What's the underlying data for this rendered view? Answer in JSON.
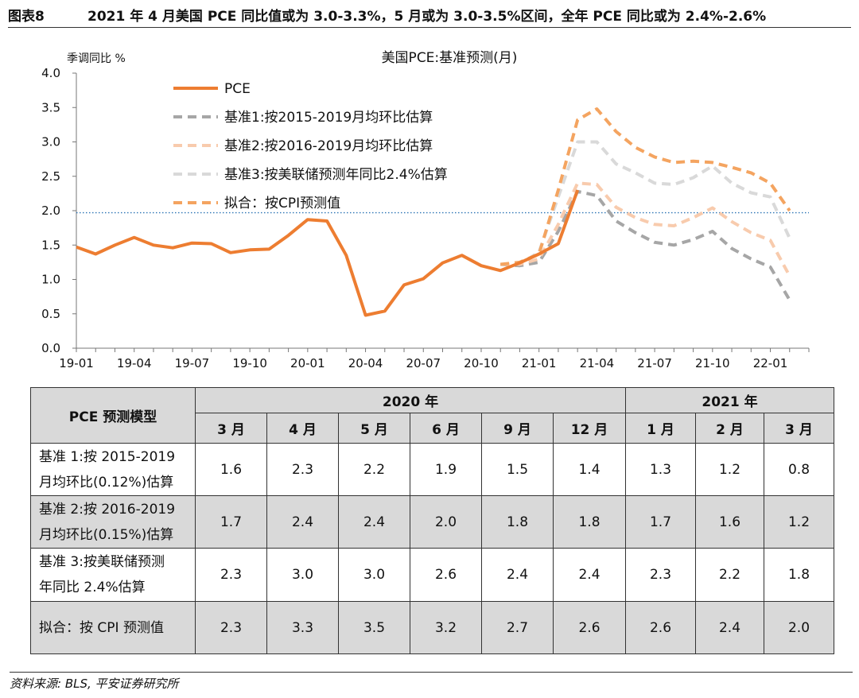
{
  "figure": {
    "number": "图表8",
    "title": "2021 年 4 月美国 PCE 同比值或为 3.0-3.3%，5 月或为 3.0-3.5%区间，全年 PCE 同比或为 2.4%-2.6%"
  },
  "chart_data": {
    "type": "line",
    "title": "美国PCE:基准预测(月)",
    "ylabel": "季调同比 %",
    "ylim": [
      0,
      4
    ],
    "yticks": [
      "0.0",
      "0.5",
      "1.0",
      "1.5",
      "2.0",
      "2.5",
      "3.0",
      "3.5",
      "4.0"
    ],
    "x_months": [
      "19-01",
      "19-02",
      "19-03",
      "19-04",
      "19-05",
      "19-06",
      "19-07",
      "19-08",
      "19-09",
      "19-10",
      "19-11",
      "19-12",
      "20-01",
      "20-02",
      "20-03",
      "20-04",
      "20-05",
      "20-06",
      "20-07",
      "20-08",
      "20-09",
      "20-10",
      "20-11",
      "20-12",
      "21-01",
      "21-02",
      "21-03",
      "21-04",
      "21-05",
      "21-06",
      "21-07",
      "21-08",
      "21-09",
      "21-10",
      "21-11",
      "21-12",
      "22-01",
      "22-02",
      "22-03"
    ],
    "xtick_labels": [
      "19-01",
      "19-04",
      "19-07",
      "19-10",
      "20-01",
      "20-04",
      "20-07",
      "20-10",
      "21-01",
      "21-04",
      "21-07",
      "21-10",
      "22-01"
    ],
    "reference_line": 1.97,
    "legend_position": "top-left",
    "series": [
      {
        "name": "PCE",
        "color": "#ed7d31",
        "dash": "solid",
        "start": "19-01",
        "values": [
          1.47,
          1.37,
          1.5,
          1.61,
          1.5,
          1.46,
          1.53,
          1.52,
          1.39,
          1.43,
          1.44,
          1.64,
          1.87,
          1.85,
          1.35,
          0.48,
          0.54,
          0.92,
          1.01,
          1.24,
          1.35,
          1.2,
          1.13,
          1.24,
          1.37,
          1.52,
          2.3
        ]
      },
      {
        "name": "基准1:按2015-2019月均环比估算",
        "color": "#a6a6a6",
        "dash": "dash",
        "start": "20-11",
        "values": [
          1.22,
          1.2,
          1.25,
          1.7,
          2.28,
          2.22,
          1.85,
          1.68,
          1.54,
          1.5,
          1.58,
          1.7,
          1.45,
          1.3,
          1.18,
          0.7
        ]
      },
      {
        "name": "基准2:按2016-2019月均环比估算",
        "color": "#f8cbad",
        "dash": "dash",
        "start": "20-11",
        "values": [
          1.22,
          1.22,
          1.3,
          1.8,
          2.4,
          2.38,
          2.05,
          1.9,
          1.8,
          1.78,
          1.9,
          2.04,
          1.84,
          1.68,
          1.57,
          1.05
        ]
      },
      {
        "name": "基准3:按美联储预测年同比2.4%估算",
        "color": "#d9d9d9",
        "dash": "dash",
        "start": "20-11",
        "values": [
          1.22,
          1.22,
          1.4,
          2.2,
          3.0,
          3.0,
          2.68,
          2.55,
          2.4,
          2.38,
          2.48,
          2.65,
          2.4,
          2.26,
          2.2,
          1.6
        ]
      },
      {
        "name": "拟合：按CPI预测值",
        "color": "#f4a460",
        "dash": "dash",
        "start": "20-11",
        "values": [
          1.22,
          1.25,
          1.37,
          2.3,
          3.32,
          3.48,
          3.15,
          2.92,
          2.78,
          2.7,
          2.72,
          2.7,
          2.63,
          2.55,
          2.4,
          2.0
        ]
      }
    ]
  },
  "table": {
    "corner_label": "PCE 预测模型",
    "year_groups": [
      {
        "label": "2020 年",
        "span": 6
      },
      {
        "label": "2021 年",
        "span": 3
      }
    ],
    "months": [
      "3 月",
      "4 月",
      "5 月",
      "6 月",
      "9 月",
      "12 月",
      "1 月",
      "2 月",
      "3 月"
    ],
    "rows": [
      {
        "label_line1": "基准 1:按 2015-2019",
        "label_line2": "月均环比(0.12%)估算",
        "values": [
          "1.6",
          "2.3",
          "2.2",
          "1.9",
          "1.5",
          "1.4",
          "1.3",
          "1.2",
          "0.8"
        ],
        "shaded": false
      },
      {
        "label_line1": "基准 2:按 2016-2019",
        "label_line2": "月均环比(0.15%)估算",
        "values": [
          "1.7",
          "2.4",
          "2.4",
          "2.0",
          "1.8",
          "1.8",
          "1.7",
          "1.6",
          "1.2"
        ],
        "shaded": true
      },
      {
        "label_line1": "基准 3:按美联储预测",
        "label_line2": "年同比 2.4%估算",
        "values": [
          "2.3",
          "3.0",
          "3.0",
          "2.6",
          "2.4",
          "2.4",
          "2.3",
          "2.2",
          "1.8"
        ],
        "shaded": false
      },
      {
        "label_line1": "拟合：按 CPI 预测值",
        "label_line2": "",
        "values": [
          "2.3",
          "3.3",
          "3.5",
          "3.2",
          "2.7",
          "2.6",
          "2.6",
          "2.4",
          "2.0"
        ],
        "shaded": true
      }
    ]
  },
  "source": "资料来源: BLS, 平安证券研究所"
}
